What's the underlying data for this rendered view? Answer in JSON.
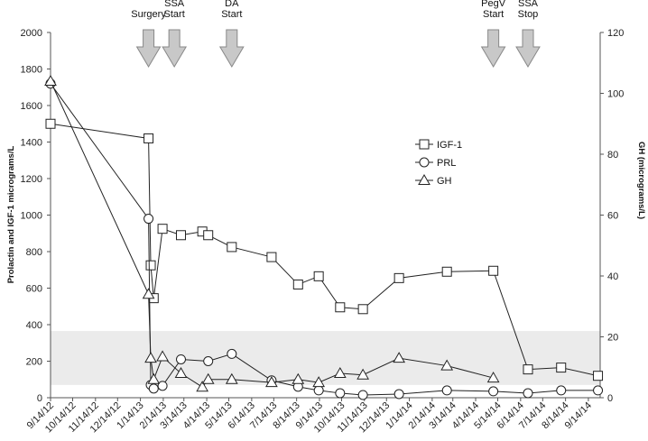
{
  "chart_data": {
    "type": "line",
    "title": "",
    "y_left_label": "Prolactin and IGF-1   micrograms/L",
    "y_right_label": "GH (micrograms/L)",
    "y_left_lim": [
      0,
      2000
    ],
    "y_left_ticks": [
      0,
      200,
      400,
      600,
      800,
      1000,
      1200,
      1400,
      1600,
      1800,
      2000
    ],
    "y_right_lim": [
      0,
      120
    ],
    "y_right_ticks": [
      0,
      20,
      40,
      60,
      80,
      100,
      120
    ],
    "x_ticks": [
      "9/14/12",
      "10/14/12",
      "11/14/12",
      "12/14/12",
      "1/14/13",
      "2/14/13",
      "3/14/13",
      "4/14/13",
      "5/14/13",
      "6/14/13",
      "7/14/13",
      "8/14/13",
      "9/14/13",
      "10/14/13",
      "11/14/13",
      "12/14/13",
      "1/14/14",
      "2/14/14",
      "3/14/14",
      "4/14/14",
      "5/14/14",
      "6/14/14",
      "7/14/14",
      "8/14/14",
      "9/14/14"
    ],
    "x_range": [
      "2012-09-14",
      "2014-09-30"
    ],
    "reference_band_left_axis": [
      70,
      365
    ],
    "legend": [
      "IGF-1",
      "PRL",
      "GH"
    ],
    "legend_position": "right, upper middle",
    "series": [
      {
        "name": "IGF-1",
        "axis": "left",
        "marker": "square",
        "points": [
          [
            "2012-09-14",
            1500
          ],
          [
            "2013-01-25",
            1420
          ],
          [
            "2013-01-28",
            725
          ],
          [
            "2013-02-01",
            545
          ],
          [
            "2013-02-13",
            925
          ],
          [
            "2013-03-10",
            890
          ],
          [
            "2013-04-08",
            910
          ],
          [
            "2013-04-16",
            890
          ],
          [
            "2013-05-18",
            825
          ],
          [
            "2013-07-11",
            770
          ],
          [
            "2013-08-16",
            620
          ],
          [
            "2013-09-13",
            665
          ],
          [
            "2013-10-12",
            495
          ],
          [
            "2013-11-12",
            485
          ],
          [
            "2013-12-31",
            655
          ],
          [
            "2014-03-06",
            690
          ],
          [
            "2014-05-08",
            695
          ],
          [
            "2014-06-24",
            155
          ],
          [
            "2014-08-08",
            165
          ],
          [
            "2014-09-27",
            120
          ]
        ]
      },
      {
        "name": "PRL",
        "axis": "left",
        "marker": "circle",
        "points": [
          [
            "2012-09-14",
            1720
          ],
          [
            "2013-01-25",
            980
          ],
          [
            "2013-01-28",
            70
          ],
          [
            "2013-02-01",
            50
          ],
          [
            "2013-02-13",
            65
          ],
          [
            "2013-03-10",
            210
          ],
          [
            "2013-04-16",
            200
          ],
          [
            "2013-05-18",
            240
          ],
          [
            "2013-07-11",
            95
          ],
          [
            "2013-08-16",
            60
          ],
          [
            "2013-09-13",
            40
          ],
          [
            "2013-10-12",
            25
          ],
          [
            "2013-11-12",
            15
          ],
          [
            "2013-12-31",
            20
          ],
          [
            "2014-03-06",
            40
          ],
          [
            "2014-05-08",
            35
          ],
          [
            "2014-06-24",
            25
          ],
          [
            "2014-08-08",
            40
          ],
          [
            "2014-09-27",
            40
          ]
        ]
      },
      {
        "name": "GH",
        "axis": "right",
        "marker": "triangle",
        "points": [
          [
            "2012-09-14",
            104
          ],
          [
            "2013-01-25",
            34
          ],
          [
            "2013-01-28",
            13
          ],
          [
            "2013-02-01",
            6
          ],
          [
            "2013-02-13",
            13.5
          ],
          [
            "2013-03-10",
            8
          ],
          [
            "2013-04-08",
            3.5
          ],
          [
            "2013-04-16",
            6
          ],
          [
            "2013-05-18",
            6
          ],
          [
            "2013-07-11",
            5
          ],
          [
            "2013-08-16",
            6
          ],
          [
            "2013-09-13",
            5
          ],
          [
            "2013-10-12",
            8
          ],
          [
            "2013-11-12",
            7.5
          ],
          [
            "2013-12-31",
            13
          ],
          [
            "2014-03-06",
            10.5
          ],
          [
            "2014-05-08",
            6.5
          ]
        ]
      }
    ],
    "annotations": [
      {
        "lines": [
          "Surgery"
        ],
        "date": "2013-01-25"
      },
      {
        "lines": [
          "SSA",
          "Start"
        ],
        "date": "2013-03-01"
      },
      {
        "lines": [
          "DA",
          "Start"
        ],
        "date": "2013-05-18"
      },
      {
        "lines": [
          "PegV",
          "Start"
        ],
        "date": "2014-05-08"
      },
      {
        "lines": [
          "SSA",
          "Stop"
        ],
        "date": "2014-06-24"
      }
    ]
  }
}
